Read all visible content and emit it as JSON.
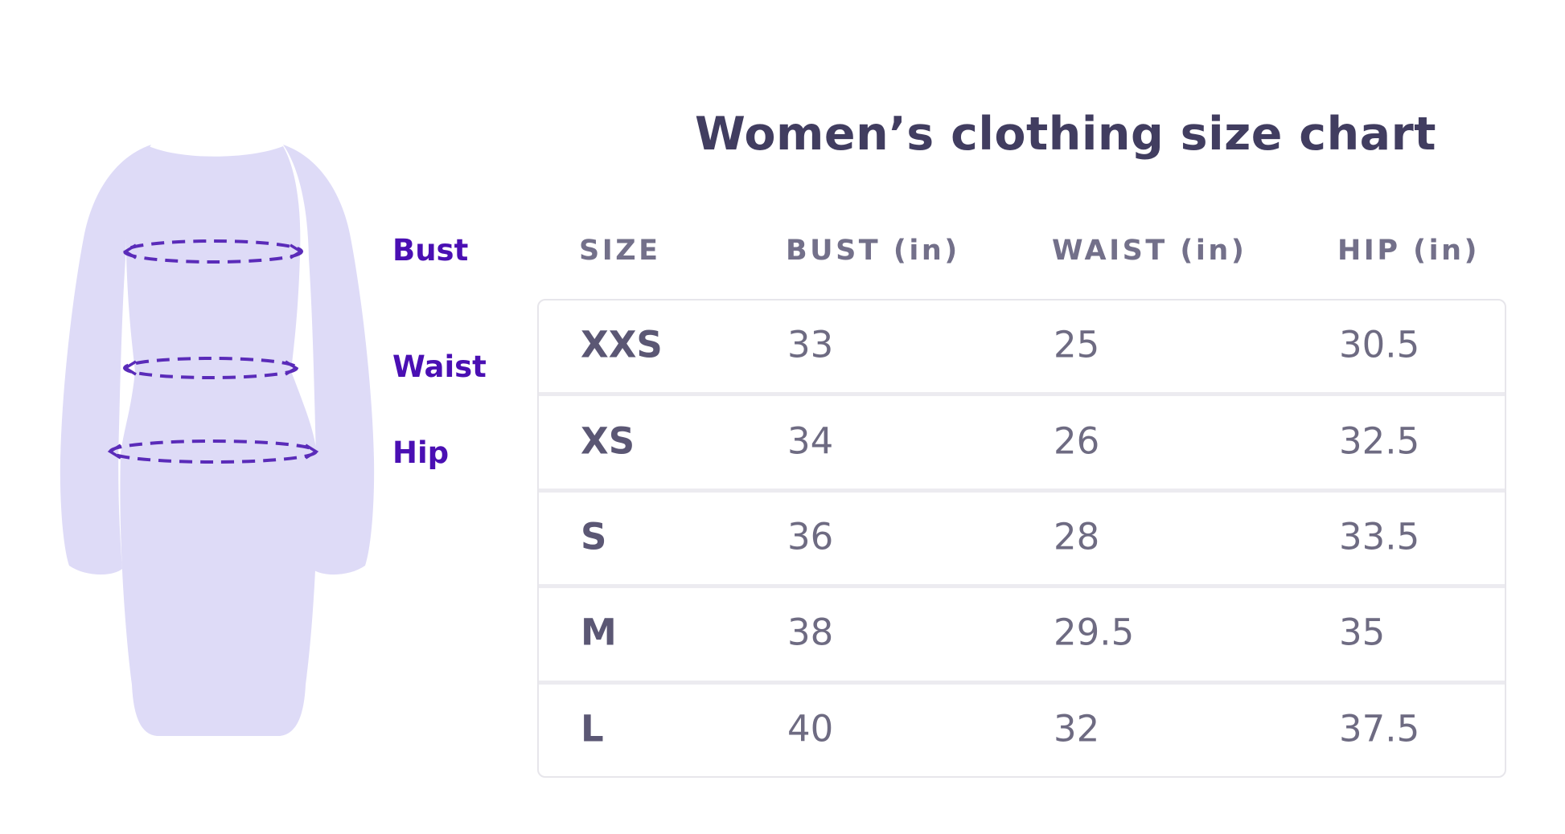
{
  "title": "Women’s clothing size chart",
  "diagram": {
    "labels": [
      {
        "text": "Bust"
      },
      {
        "text": "Waist"
      },
      {
        "text": "Hip"
      }
    ],
    "dress_fill": "#DEDBF7",
    "measure_line_color": "#5A2BB9",
    "label_color": "#4A0FB3"
  },
  "chart_data": {
    "type": "table",
    "title": "Women’s clothing size chart",
    "columns": [
      "SIZE",
      "BUST (in)",
      "WAIST (in)",
      "HIP (in)"
    ],
    "rows": [
      [
        "XXS",
        "33",
        "25",
        "30.5"
      ],
      [
        "XS",
        "34",
        "26",
        "32.5"
      ],
      [
        "S",
        "36",
        "28",
        "33.5"
      ],
      [
        "M",
        "38",
        "29.5",
        "35"
      ],
      [
        "L",
        "40",
        "32",
        "37.5"
      ]
    ]
  }
}
